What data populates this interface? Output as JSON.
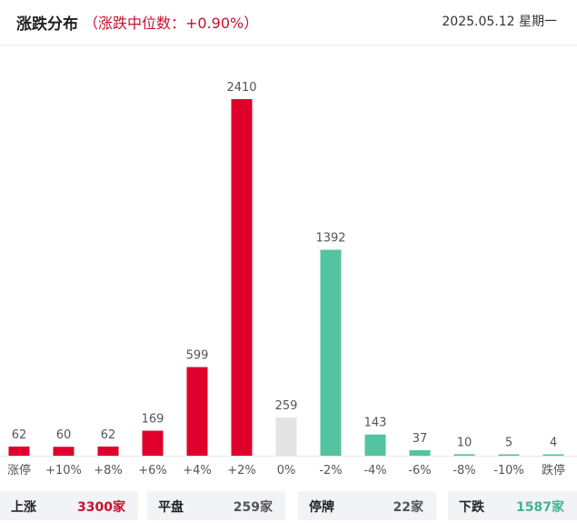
{
  "header": {
    "title": "涨跌分布",
    "median": "（涨跌中位数：+0.90%）",
    "date": "2025.05.12 星期一"
  },
  "colors": {
    "up": "#e0002b",
    "flat": "#e4e4e4",
    "down": "#52c4a0"
  },
  "chart_data": {
    "type": "bar",
    "categories": [
      "涨停",
      "+10%",
      "+8%",
      "+6%",
      "+4%",
      "+2%",
      "0%",
      "-2%",
      "-4%",
      "-6%",
      "-8%",
      "-10%",
      "跌停"
    ],
    "values": [
      62,
      60,
      62,
      169,
      599,
      2410,
      259,
      1392,
      143,
      37,
      10,
      5,
      4
    ],
    "groups": [
      "up",
      "up",
      "up",
      "up",
      "up",
      "up",
      "flat",
      "down",
      "down",
      "down",
      "down",
      "down",
      "down"
    ],
    "ylim": [
      0,
      2410
    ]
  },
  "footer": {
    "items": [
      {
        "label": "上涨",
        "value": "3300家",
        "color": "#c8102e"
      },
      {
        "label": "平盘",
        "value": "259家",
        "color": "#555555"
      },
      {
        "label": "停牌",
        "value": "22家",
        "color": "#555555"
      },
      {
        "label": "下跌",
        "value": "1587家",
        "color": "#3fb58f"
      }
    ]
  }
}
